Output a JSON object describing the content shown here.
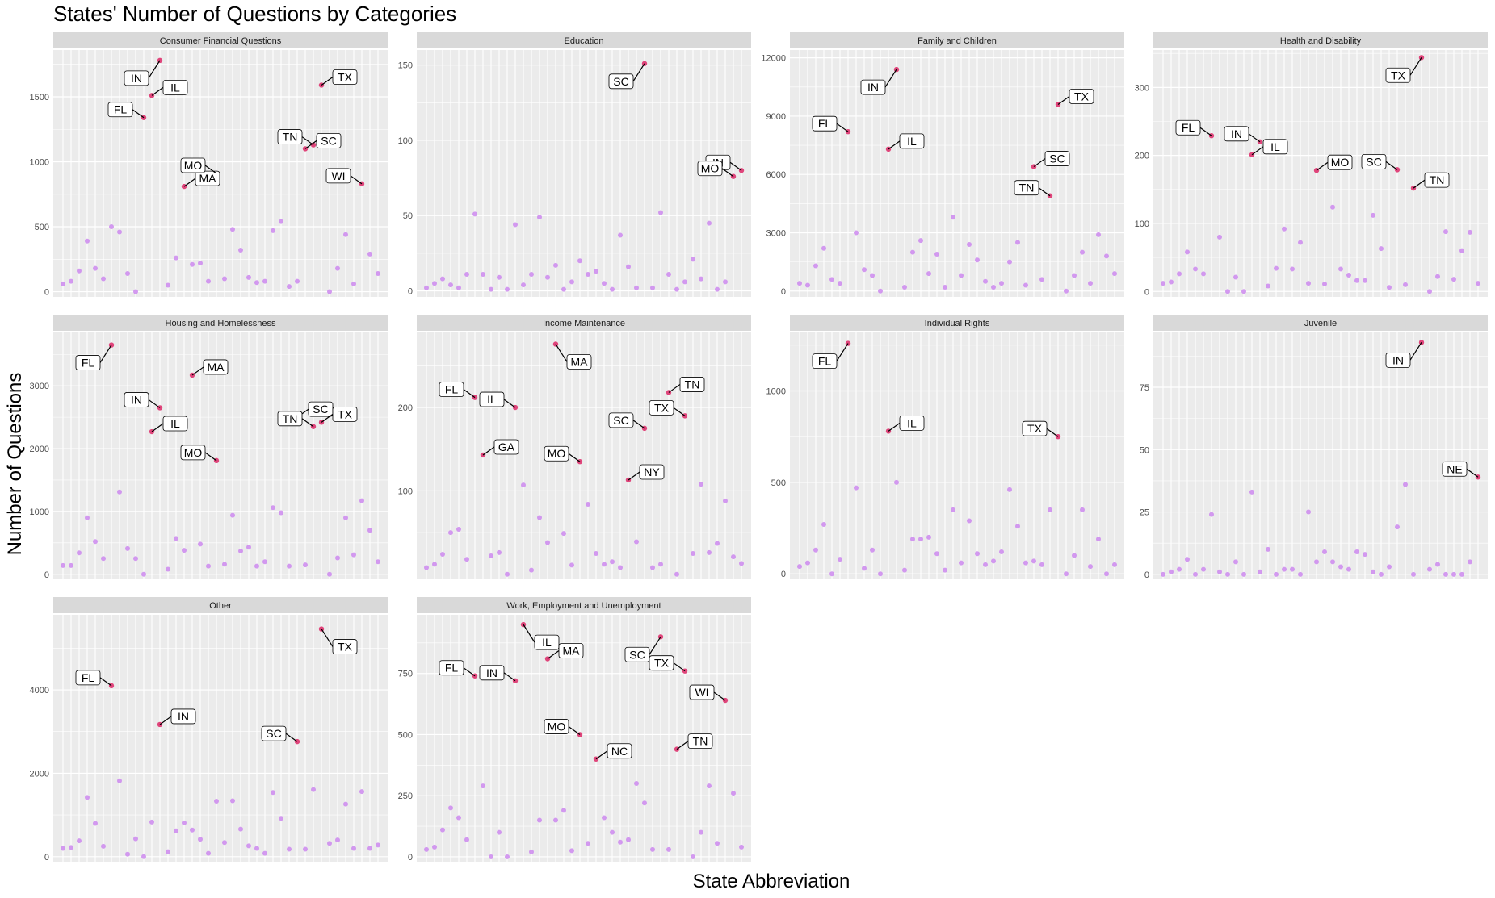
{
  "chart_data": {
    "type": "scatter",
    "title": "States' Number of Questions by Categories",
    "xlabel": "State Abbreviation",
    "ylabel": "Number of Questions",
    "grid": true,
    "legend": "none",
    "colors": {
      "point": "#cc88ee",
      "highlight": "#e0457b",
      "panel_bg": "#ebebeb",
      "strip_bg": "#d9d9d9",
      "grid": "#ffffff"
    },
    "panels": [
      {
        "name": "Consumer Financial Questions",
        "yticks": [
          0,
          500,
          1000,
          1500
        ],
        "ylim": [
          -40,
          1860
        ],
        "values": [
          60,
          80,
          160,
          390,
          180,
          100,
          500,
          460,
          140,
          0,
          1340,
          1510,
          1780,
          50,
          260,
          810,
          210,
          220,
          80,
          910,
          100,
          480,
          320,
          110,
          70,
          80,
          470,
          540,
          40,
          80,
          1100,
          1130,
          1590,
          0,
          180,
          440,
          60,
          830,
          290,
          140
        ],
        "labels": [
          {
            "i": 10,
            "text": "FL"
          },
          {
            "i": 11,
            "text": "IL"
          },
          {
            "i": 12,
            "text": "IN"
          },
          {
            "i": 15,
            "text": "MA"
          },
          {
            "i": 19,
            "text": "MO"
          },
          {
            "i": 30,
            "text": "SC"
          },
          {
            "i": 31,
            "text": "TN"
          },
          {
            "i": 32,
            "text": "TX"
          },
          {
            "i": 37,
            "text": "WI"
          }
        ]
      },
      {
        "name": "Education",
        "yticks": [
          0,
          50,
          100,
          150
        ],
        "ylim": [
          -4,
          160
        ],
        "values": [
          2,
          5,
          8,
          4,
          2,
          11,
          51,
          11,
          1,
          9,
          1,
          44,
          4,
          11,
          49,
          9,
          17,
          1,
          6,
          20,
          11,
          13,
          5,
          1,
          37,
          16,
          2,
          151,
          2,
          52,
          11,
          1,
          6,
          21,
          8,
          45,
          1,
          6,
          76,
          80
        ],
        "labels": [
          {
            "i": 27,
            "text": "SC"
          },
          {
            "i": 39,
            "text": "IN"
          },
          {
            "i": 38,
            "text": "MO"
          }
        ]
      },
      {
        "name": "Family and Children",
        "yticks": [
          0,
          3000,
          6000,
          9000,
          12000
        ],
        "ylim": [
          -300,
          12400
        ],
        "values": [
          400,
          300,
          1300,
          2200,
          600,
          400,
          8200,
          3000,
          1100,
          800,
          0,
          7300,
          11400,
          200,
          2000,
          2600,
          900,
          1900,
          200,
          3800,
          800,
          2400,
          1600,
          500,
          200,
          400,
          1500,
          2500,
          300,
          6400,
          600,
          4900,
          9600,
          0,
          800,
          2000,
          400,
          2900,
          1800,
          900
        ],
        "labels": [
          {
            "i": 6,
            "text": "FL"
          },
          {
            "i": 11,
            "text": "IL"
          },
          {
            "i": 12,
            "text": "IN"
          },
          {
            "i": 29,
            "text": "SC"
          },
          {
            "i": 31,
            "text": "TN"
          },
          {
            "i": 32,
            "text": "TX"
          }
        ]
      },
      {
        "name": "Health and Disability",
        "yticks": [
          0,
          100,
          200,
          300
        ],
        "ylim": [
          -8,
          355
        ],
        "values": [
          12,
          14,
          26,
          58,
          33,
          26,
          229,
          80,
          0,
          21,
          0,
          201,
          220,
          8,
          34,
          92,
          33,
          72,
          12,
          178,
          11,
          124,
          33,
          24,
          16,
          16,
          112,
          63,
          6,
          179,
          10,
          152,
          344,
          0,
          22,
          88,
          18,
          60,
          87,
          12
        ],
        "labels": [
          {
            "i": 6,
            "text": "FL"
          },
          {
            "i": 11,
            "text": "IL"
          },
          {
            "i": 12,
            "text": "IN"
          },
          {
            "i": 19,
            "text": "MO"
          },
          {
            "i": 29,
            "text": "SC"
          },
          {
            "i": 31,
            "text": "TN"
          },
          {
            "i": 32,
            "text": "TX"
          }
        ]
      },
      {
        "name": "Housing and Homelessness",
        "yticks": [
          0,
          1000,
          2000,
          3000
        ],
        "ylim": [
          -80,
          3850
        ],
        "values": [
          140,
          140,
          340,
          900,
          520,
          250,
          3650,
          1310,
          410,
          250,
          0,
          2270,
          2650,
          80,
          570,
          380,
          3170,
          480,
          130,
          1810,
          160,
          940,
          370,
          430,
          130,
          200,
          1060,
          980,
          130,
          2500,
          150,
          2350,
          2420,
          0,
          260,
          900,
          310,
          1170,
          700,
          200
        ],
        "labels": [
          {
            "i": 6,
            "text": "FL"
          },
          {
            "i": 11,
            "text": "IL"
          },
          {
            "i": 12,
            "text": "IN"
          },
          {
            "i": 16,
            "text": "MA"
          },
          {
            "i": 19,
            "text": "MO"
          },
          {
            "i": 29,
            "text": "SC"
          },
          {
            "i": 31,
            "text": "TN"
          },
          {
            "i": 32,
            "text": "TX"
          }
        ]
      },
      {
        "name": "Income Maintenance",
        "yticks": [
          100,
          200
        ],
        "ylim": [
          -6,
          290
        ],
        "values": [
          8,
          12,
          24,
          50,
          54,
          18,
          212,
          143,
          22,
          26,
          0,
          200,
          107,
          5,
          68,
          38,
          276,
          49,
          11,
          135,
          84,
          25,
          12,
          15,
          8,
          113,
          39,
          175,
          8,
          12,
          218,
          0,
          190,
          25,
          108,
          26,
          37,
          88,
          21,
          13
        ],
        "labels": [
          {
            "i": 6,
            "text": "FL"
          },
          {
            "i": 7,
            "text": "GA"
          },
          {
            "i": 11,
            "text": "IL"
          },
          {
            "i": 16,
            "text": "MA"
          },
          {
            "i": 19,
            "text": "MO"
          },
          {
            "i": 25,
            "text": "NY"
          },
          {
            "i": 27,
            "text": "SC"
          },
          {
            "i": 30,
            "text": "TN"
          },
          {
            "i": 32,
            "text": "TX"
          }
        ]
      },
      {
        "name": "Individual Rights",
        "yticks": [
          0,
          500,
          1000
        ],
        "ylim": [
          -30,
          1320
        ],
        "values": [
          40,
          60,
          130,
          270,
          0,
          80,
          1260,
          470,
          30,
          130,
          0,
          780,
          500,
          20,
          190,
          190,
          200,
          110,
          20,
          350,
          60,
          290,
          110,
          50,
          70,
          120,
          460,
          260,
          60,
          70,
          50,
          350,
          750,
          0,
          100,
          350,
          40,
          190,
          0,
          50
        ],
        "labels": [
          {
            "i": 6,
            "text": "FL"
          },
          {
            "i": 11,
            "text": "IL"
          },
          {
            "i": 32,
            "text": "TX"
          }
        ]
      },
      {
        "name": "Juvenile",
        "yticks": [
          0,
          25,
          50,
          75
        ],
        "ylim": [
          -2,
          97
        ],
        "values": [
          0,
          1,
          2,
          6,
          0,
          2,
          24,
          1,
          0,
          5,
          0,
          33,
          1,
          10,
          0,
          2,
          2,
          0,
          25,
          5,
          9,
          5,
          3,
          2,
          9,
          8,
          1,
          0,
          3,
          19,
          36,
          0,
          93,
          2,
          4,
          0,
          0,
          0,
          5,
          39
        ],
        "labels": [
          {
            "i": 32,
            "text": "IN"
          },
          {
            "i": 39,
            "text": "NE"
          }
        ]
      },
      {
        "name": "Other",
        "yticks": [
          0,
          2000,
          4000
        ],
        "ylim": [
          -120,
          5800
        ],
        "values": [
          200,
          220,
          380,
          1420,
          800,
          250,
          4100,
          1820,
          60,
          430,
          0,
          830,
          3170,
          120,
          620,
          810,
          640,
          420,
          80,
          1330,
          340,
          1340,
          660,
          260,
          200,
          80,
          1540,
          920,
          180,
          2760,
          180,
          1610,
          5460,
          320,
          400,
          1260,
          200,
          1560,
          200,
          280
        ],
        "labels": [
          {
            "i": 6,
            "text": "FL"
          },
          {
            "i": 12,
            "text": "IN"
          },
          {
            "i": 29,
            "text": "SC"
          },
          {
            "i": 32,
            "text": "TX"
          }
        ]
      },
      {
        "name": "Work, Employment and Unemployment",
        "yticks": [
          0,
          250,
          500,
          750
        ],
        "ylim": [
          -20,
          990
        ],
        "values": [
          30,
          40,
          110,
          200,
          160,
          70,
          740,
          290,
          0,
          100,
          0,
          720,
          950,
          20,
          150,
          810,
          150,
          190,
          25,
          500,
          55,
          400,
          160,
          100,
          60,
          70,
          300,
          220,
          30,
          900,
          30,
          440,
          760,
          0,
          100,
          290,
          55,
          640,
          260,
          40
        ],
        "labels": [
          {
            "i": 6,
            "text": "FL"
          },
          {
            "i": 12,
            "text": "IL"
          },
          {
            "i": 11,
            "text": "IN"
          },
          {
            "i": 15,
            "text": "MA"
          },
          {
            "i": 19,
            "text": "MO"
          },
          {
            "i": 21,
            "text": "NC"
          },
          {
            "i": 29,
            "text": "SC"
          },
          {
            "i": 31,
            "text": "TN"
          },
          {
            "i": 32,
            "text": "TX"
          },
          {
            "i": 37,
            "text": "WI"
          }
        ]
      }
    ]
  }
}
